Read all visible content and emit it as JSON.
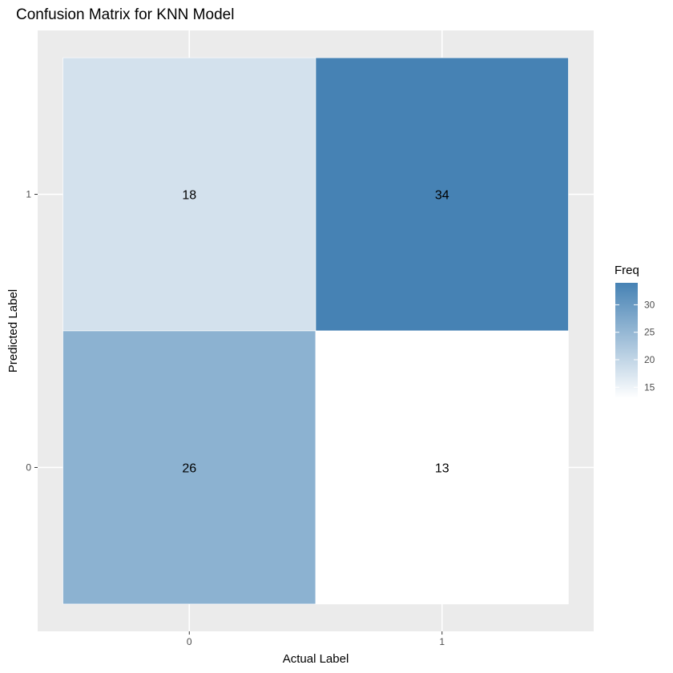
{
  "chart_data": {
    "type": "heatmap",
    "title": "Confusion Matrix for KNN Model",
    "xlabel": "Actual Label",
    "ylabel": "Predicted Label",
    "x_categories": [
      "0",
      "1"
    ],
    "y_categories": [
      "0",
      "1"
    ],
    "cells": [
      {
        "x": "0",
        "y": "1",
        "value": 18
      },
      {
        "x": "1",
        "y": "1",
        "value": 34
      },
      {
        "x": "0",
        "y": "0",
        "value": 26
      },
      {
        "x": "1",
        "y": "0",
        "value": 13
      }
    ],
    "legend": {
      "title": "Freq",
      "ticks": [
        15,
        20,
        25,
        30
      ],
      "range": [
        13,
        34
      ],
      "low_color": "#ffffff",
      "high_color": "#4682b4",
      "placement": "right"
    },
    "panel_background": "#ebebeb",
    "grid": true
  }
}
